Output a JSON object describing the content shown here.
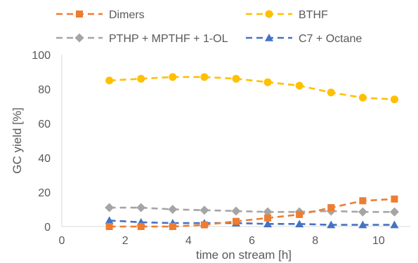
{
  "chart_data": {
    "type": "line",
    "xlabel": "time on stream [h]",
    "ylabel": "GC yield [%]",
    "xlim": [
      0,
      11
    ],
    "ylim": [
      0,
      100
    ],
    "x_ticks": [
      0,
      2,
      4,
      6,
      8,
      10
    ],
    "y_ticks": [
      0,
      20,
      40,
      60,
      80,
      100
    ],
    "grid": false,
    "legend_position": "top",
    "x": [
      1.5,
      2.5,
      3.5,
      4.5,
      5.5,
      6.5,
      7.5,
      8.5,
      9.5,
      10.5
    ],
    "series": [
      {
        "name": "Dimers",
        "color": "#ED7D31",
        "marker": "square",
        "values": [
          0,
          0,
          0,
          1,
          3,
          5,
          7,
          11,
          15,
          16
        ]
      },
      {
        "name": "BTHF",
        "color": "#FFC000",
        "marker": "circle",
        "values": [
          85,
          86,
          87,
          87,
          86,
          84,
          82,
          78,
          75,
          74
        ]
      },
      {
        "name": "PTHP + MPTHF + 1-OL",
        "color": "#A5A5A5",
        "marker": "diamond",
        "values": [
          11,
          11,
          10,
          9.5,
          9,
          8.5,
          8.5,
          9,
          8.5,
          8.5
        ]
      },
      {
        "name": "C7 + Octane",
        "color": "#4472C4",
        "marker": "triangle",
        "values": [
          3.5,
          2.5,
          2,
          2,
          2,
          1.5,
          1.5,
          1,
          1,
          1
        ]
      }
    ]
  }
}
